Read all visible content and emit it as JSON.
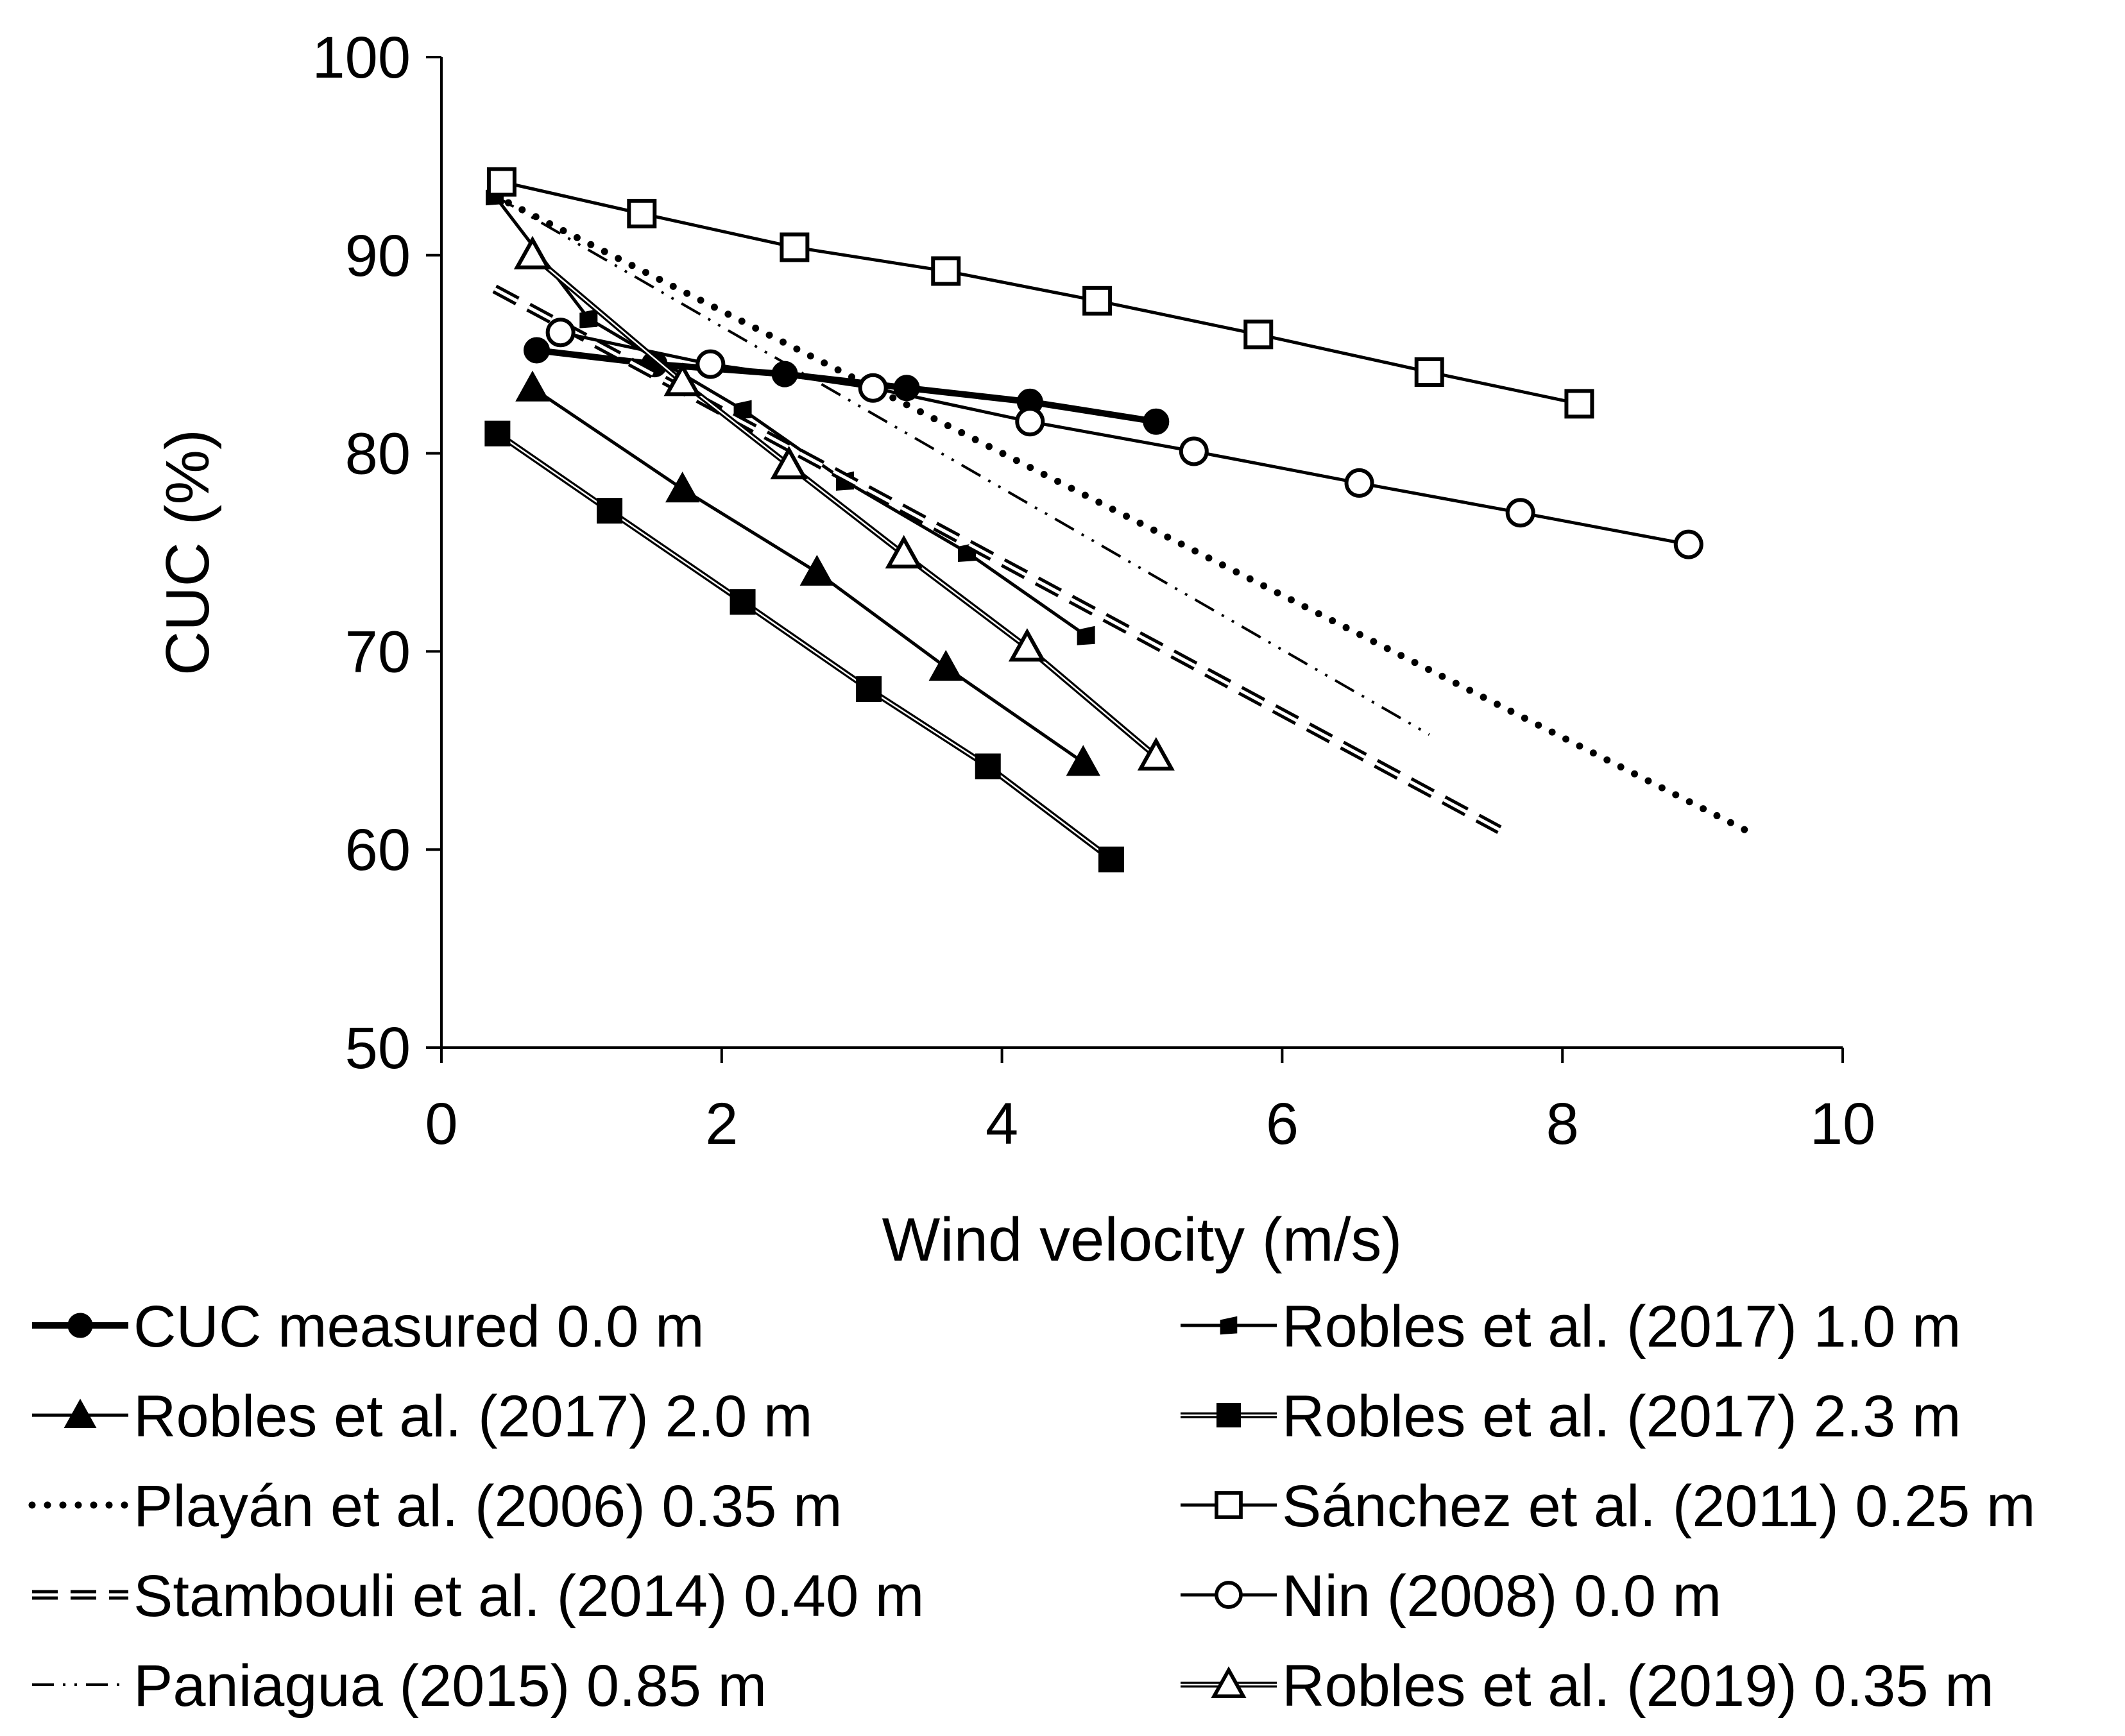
{
  "chart_data": {
    "type": "line",
    "title": "",
    "xlabel": "Wind velocity (m/s)",
    "ylabel": "CUC (%)",
    "xlim": [
      0,
      10
    ],
    "ylim": [
      50,
      100
    ],
    "xticks": [
      0,
      2,
      4,
      6,
      8,
      10
    ],
    "yticks": [
      50,
      60,
      70,
      80,
      90,
      100
    ],
    "xtick_labels": [
      "0",
      "2",
      "4",
      "6",
      "8",
      "10"
    ],
    "ytick_labels": [
      "50",
      "60",
      "70",
      "80",
      "90",
      "100"
    ],
    "grid": false,
    "legend_position": "bottom",
    "series": [
      {
        "name": "CUC measured 0.0 m",
        "line": "solid-thick",
        "marker": "circle-filled",
        "x": [
          0.68,
          1.52,
          2.45,
          3.32,
          4.2,
          5.1
        ],
        "y": [
          85.2,
          84.5,
          84.0,
          83.3,
          82.6,
          81.6
        ]
      },
      {
        "name": "Robles et al. (2017) 1.0 m",
        "line": "solid",
        "marker": "square-small-filled",
        "x": [
          0.38,
          1.05,
          2.15,
          2.88,
          3.75,
          4.6
        ],
        "y": [
          93.0,
          86.8,
          82.2,
          78.6,
          75.0,
          70.8
        ]
      },
      {
        "name": "Robles et al. (2017) 2.0 m",
        "line": "solid",
        "marker": "triangle-filled",
        "x": [
          0.65,
          1.72,
          2.68,
          3.6,
          4.58
        ],
        "y": [
          83.3,
          78.2,
          74.0,
          69.2,
          64.4
        ]
      },
      {
        "name": "Robles et al. (2017) 2.3 m",
        "line": "double",
        "marker": "square-filled",
        "x": [
          0.4,
          1.2,
          2.15,
          3.05,
          3.9,
          4.78
        ],
        "y": [
          81.0,
          77.1,
          72.5,
          68.1,
          64.2,
          59.5
        ]
      },
      {
        "name": "Playán et al. (2006) 0.35 m",
        "line": "dotted",
        "marker": "none",
        "x": [
          0.38,
          9.3
        ],
        "y": [
          93.0,
          61.0
        ]
      },
      {
        "name": "Sánchez et al. (2011) 0.25 m",
        "line": "solid",
        "marker": "square-open",
        "x": [
          0.43,
          1.43,
          2.52,
          3.6,
          4.68,
          5.83,
          7.05,
          8.12
        ],
        "y": [
          93.7,
          92.1,
          90.4,
          89.2,
          87.7,
          86.0,
          84.1,
          82.5
        ]
      },
      {
        "name": "Stambouli et al. (2014) 0.40 m",
        "line": "double-dashed",
        "marker": "none",
        "x": [
          0.38,
          7.55
        ],
        "y": [
          88.3,
          61.0
        ]
      },
      {
        "name": "Nin (2008) 0.0 m",
        "line": "solid",
        "marker": "circle-open",
        "x": [
          0.85,
          1.92,
          3.08,
          4.2,
          5.37,
          6.55,
          7.7,
          8.9
        ],
        "y": [
          86.1,
          84.5,
          83.3,
          81.6,
          80.1,
          78.5,
          77.0,
          75.4
        ]
      },
      {
        "name": "Paniagua (2015) 0.85 m",
        "line": "dash-dot-dot",
        "marker": "none",
        "x": [
          0.38,
          7.05
        ],
        "y": [
          93.0,
          65.8
        ]
      },
      {
        "name": "Robles et al. (2019) 0.35 m",
        "line": "double",
        "marker": "triangle-open",
        "x": [
          0.65,
          1.72,
          2.48,
          3.3,
          4.18,
          5.1
        ],
        "y": [
          90.0,
          83.6,
          79.4,
          74.9,
          70.2,
          64.7
        ]
      }
    ]
  }
}
